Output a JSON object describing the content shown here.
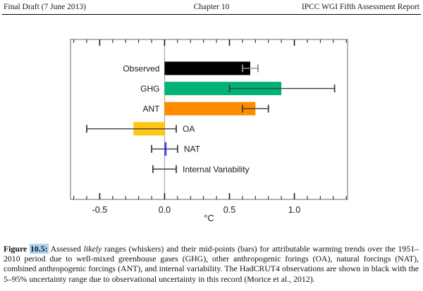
{
  "header": {
    "left": "Final Draft (7 June 2013)",
    "center": "Chapter 10",
    "right": "IPCC WGI Fifth Assessment Report"
  },
  "chart_data": {
    "type": "bar",
    "orientation": "horizontal",
    "title": "",
    "xlabel": "°C",
    "unit_label": "°C",
    "x_axis": {
      "min": -0.725,
      "max": 1.41,
      "major_ticks": [
        -0.5,
        0.0,
        0.5,
        1.0
      ],
      "tick_labels": [
        "-0.5",
        "0.0",
        "0.5",
        "1.0"
      ],
      "minor_tick_step": 0.1,
      "grid": false
    },
    "series": [
      {
        "label": "Observed",
        "bar_value": 0.66,
        "whisker_low": 0.6,
        "whisker_high": 0.72,
        "bar_color": "#000000",
        "whisker_color": "#909090",
        "label_side": "left"
      },
      {
        "label": "GHG",
        "bar_value": 0.9,
        "whisker_low": 0.5,
        "whisker_high": 1.31,
        "bar_color": "#00B375",
        "whisker_color": "#3d3d3d",
        "label_side": "left"
      },
      {
        "label": "ANT",
        "bar_value": 0.7,
        "whisker_low": 0.6,
        "whisker_high": 0.8,
        "bar_color": "#FF8C00",
        "whisker_color": "#3d3d3d",
        "label_side": "left"
      },
      {
        "label": "OA",
        "bar_value": -0.24,
        "whisker_low": -0.6,
        "whisker_high": 0.09,
        "bar_color": "#FFC613",
        "whisker_color": "#3d3d3d",
        "label_side": "right"
      },
      {
        "label": "NAT",
        "bar_value": 0.015,
        "whisker_low": -0.1,
        "whisker_high": 0.1,
        "bar_color": "#3B3BFF",
        "whisker_color": "#3d3d3d",
        "label_side": "right"
      },
      {
        "label": "Internal Variability",
        "bar_value": null,
        "whisker_low": -0.09,
        "whisker_high": 0.09,
        "bar_color": null,
        "whisker_color": "#3d3d3d",
        "label_side": "right"
      }
    ],
    "colors": {
      "zero_line": "#ABABAB",
      "plot_border": "#8C8C8C",
      "tick": "#1a1a1a"
    }
  },
  "caption": {
    "figure_label": "Figure ",
    "figure_number": "10.5:",
    "lead": " Assessed ",
    "italic_term": "likely",
    "body": " ranges (whiskers) and their mid-points (bars) for attributable warming trends over the 1951–2010 period due to well-mixed greenhouse gases (GHG), other anthropogenic forings (OA), natural forcings (NAT), combined anthropogenic forcings (ANT), and internal variability. The HadCRUT4 observations are shown in black with the 5–95% uncertainty range due to observational uncertainty in this record (Morice et al., 2012).",
    "highlight_color": "#A9D3EE"
  }
}
